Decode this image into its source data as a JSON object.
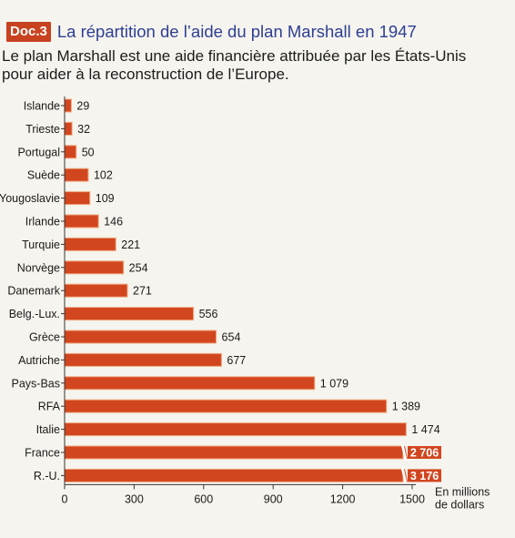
{
  "header": {
    "doc_label": "Doc.3",
    "title": "La répartition de l’aide du plan Marshall en 1947"
  },
  "intro": {
    "line1": "Le plan Marshall est une aide financière attribuée par les États-Unis",
    "line2": "pour aider à la reconstruction de l’Europe."
  },
  "colors": {
    "bar": "#d2461f",
    "bar_highlight": "#f0a87f",
    "axis": "#333333",
    "badge": "#c8421f",
    "title": "#2d3f93"
  },
  "chart_data": {
    "type": "bar",
    "orientation": "horizontal",
    "categories": [
      "Islande",
      "Trieste",
      "Portugal",
      "Suède",
      "Yougoslavie",
      "Irlande",
      "Turquie",
      "Norvège",
      "Danemark",
      "Belg.-Lux.",
      "Grèce",
      "Autriche",
      "Pays-Bas",
      "RFA",
      "Italie",
      "France",
      "R.-U."
    ],
    "values": [
      29,
      32,
      50,
      102,
      109,
      146,
      221,
      254,
      271,
      556,
      654,
      677,
      1079,
      1389,
      1474,
      2706,
      3176
    ],
    "value_labels": [
      "29",
      "32",
      "50",
      "102",
      "109",
      "146",
      "221",
      "254",
      "271",
      "556",
      "654",
      "677",
      "1 079",
      "1 389",
      "1 474",
      "2 706",
      "3 176"
    ],
    "truncated_categories": [
      "France",
      "R.-U."
    ],
    "xlim": [
      0,
      1500
    ],
    "xticks": [
      0,
      300,
      600,
      900,
      1200,
      1500
    ],
    "xtick_labels": [
      "0",
      "300",
      "600",
      "900",
      "1200",
      "1500"
    ],
    "xlabel": "En millions de dollars",
    "xlabel_line1": "En millions",
    "xlabel_line2": "de dollars",
    "grid": false,
    "legend": "none"
  }
}
